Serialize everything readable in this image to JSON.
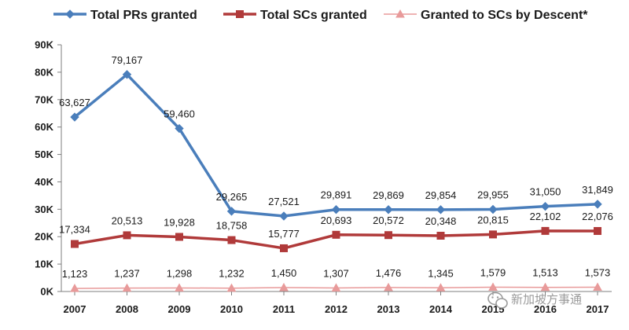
{
  "chart_data": {
    "type": "line",
    "categories": [
      "2007",
      "2008",
      "2009",
      "2010",
      "2011",
      "2012",
      "2013",
      "2014",
      "2015",
      "2016",
      "2017"
    ],
    "ylim": [
      0,
      90000
    ],
    "yticks": [
      "0K",
      "10K",
      "20K",
      "30K",
      "40K",
      "50K",
      "60K",
      "70K",
      "80K",
      "90K"
    ],
    "grid": false,
    "legend_position": "top",
    "series": [
      {
        "name": "Total PRs granted",
        "color": "#4a7ebb",
        "marker": "diamond",
        "values": [
          63627,
          79167,
          59460,
          29265,
          27521,
          29891,
          29869,
          29854,
          29955,
          31050,
          31849
        ],
        "labels": [
          "63,627",
          "79,167",
          "59,460",
          "29,265",
          "27,521",
          "29,891",
          "29,869",
          "29,854",
          "29,955",
          "31,050",
          "31,849"
        ]
      },
      {
        "name": "Total SCs granted",
        "color": "#b03a3a",
        "marker": "square",
        "values": [
          17334,
          20513,
          19928,
          18758,
          15777,
          20693,
          20572,
          20348,
          20815,
          22102,
          22076
        ],
        "labels": [
          "17,334",
          "20,513",
          "19,928",
          "18,758",
          "15,777",
          "20,693",
          "20,572",
          "20,348",
          "20,815",
          "22,102",
          "22,076"
        ]
      },
      {
        "name": "Granted to SCs by Descent*",
        "color": "#e89a9a",
        "marker": "triangle",
        "values": [
          1123,
          1237,
          1298,
          1232,
          1450,
          1307,
          1476,
          1345,
          1579,
          1513,
          1573
        ],
        "labels": [
          "1,123",
          "1,237",
          "1,298",
          "1,232",
          "1,450",
          "1,307",
          "1,476",
          "1,345",
          "1,579",
          "1,513",
          "1,573"
        ]
      }
    ]
  },
  "watermark": {
    "text": "新加坡方事通",
    "icon": "wechat-icon"
  }
}
